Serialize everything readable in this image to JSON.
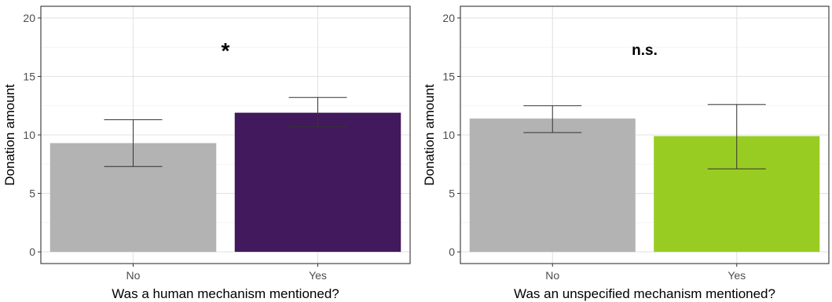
{
  "chart_data": [
    {
      "type": "bar",
      "categories": [
        "No",
        "Yes"
      ],
      "values": [
        9.3,
        11.9
      ],
      "error_low": [
        7.3,
        10.7
      ],
      "error_high": [
        11.3,
        13.2
      ],
      "colors": [
        "#b3b3b3",
        "#43195e"
      ],
      "annotation": "*",
      "xlabel": "Was a human mechanism mentioned?",
      "ylabel": "Donation amount",
      "ylim": [
        -1,
        21
      ],
      "yticks": [
        0,
        5,
        10,
        15,
        20
      ],
      "grid": true
    },
    {
      "type": "bar",
      "categories": [
        "No",
        "Yes"
      ],
      "values": [
        11.4,
        9.9
      ],
      "error_low": [
        10.2,
        7.1
      ],
      "error_high": [
        12.5,
        12.6
      ],
      "colors": [
        "#b3b3b3",
        "#99cc22"
      ],
      "annotation": "n.s.",
      "xlabel": "Was an unspecified mechanism mentioned?",
      "ylabel": "Donation amount",
      "ylim": [
        -1,
        21
      ],
      "yticks": [
        0,
        5,
        10,
        15,
        20
      ],
      "grid": true
    }
  ]
}
